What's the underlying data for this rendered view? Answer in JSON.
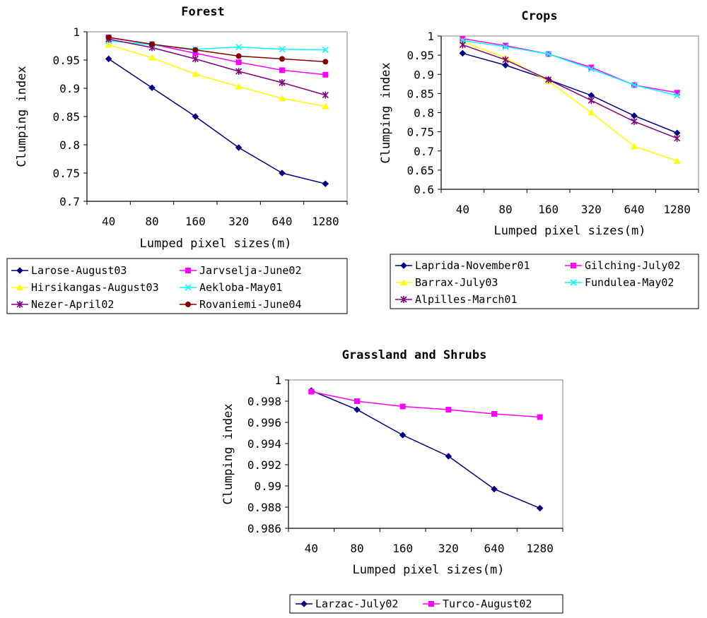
{
  "chart_data": [
    {
      "type": "line",
      "title": "Forest",
      "xlabel": "Lumped pixel sizes(m)",
      "ylabel": "Clumping index",
      "categories": [
        "40",
        "80",
        "160",
        "320",
        "640",
        "1280"
      ],
      "ylim": [
        0.7,
        1
      ],
      "yticks": [
        "0.7",
        "0.75",
        "0.8",
        "0.85",
        "0.9",
        "0.95",
        "1"
      ],
      "grid": false,
      "legend_position": "bottom",
      "series": [
        {
          "name": "Larose-August03",
          "color": "#000080",
          "marker": "diamond",
          "values": [
            0.952,
            0.901,
            0.85,
            0.795,
            0.75,
            0.731
          ]
        },
        {
          "name": "Jarvselja-June02",
          "color": "#ff00ff",
          "marker": "square",
          "values": [
            0.99,
            0.978,
            0.962,
            0.946,
            0.932,
            0.924
          ]
        },
        {
          "name": "Hirsikangas-August03",
          "color": "#ffff00",
          "marker": "triangle",
          "values": [
            0.977,
            0.954,
            0.925,
            0.903,
            0.882,
            0.868
          ]
        },
        {
          "name": "Aekloba-May01",
          "color": "#00ffff",
          "marker": "x",
          "values": [
            0.984,
            0.977,
            0.969,
            0.973,
            0.969,
            0.968
          ]
        },
        {
          "name": "Nezer-April02",
          "color": "#800080",
          "marker": "asterisk",
          "values": [
            0.987,
            0.972,
            0.952,
            0.93,
            0.91,
            0.888
          ]
        },
        {
          "name": "Rovaniemi-June04",
          "color": "#800000",
          "marker": "circle",
          "values": [
            0.99,
            0.978,
            0.968,
            0.957,
            0.952,
            0.947
          ]
        }
      ]
    },
    {
      "type": "line",
      "title": "Crops",
      "xlabel": "Lumped pixel sizes(m)",
      "ylabel": "Clumping index",
      "categories": [
        "40",
        "80",
        "160",
        "320",
        "640",
        "1280"
      ],
      "ylim": [
        0.6,
        1
      ],
      "yticks": [
        "0.6",
        "0.65",
        "0.7",
        "0.75",
        "0.8",
        "0.85",
        "0.9",
        "0.95",
        "1"
      ],
      "grid": false,
      "legend_position": "bottom",
      "series": [
        {
          "name": "Laprida-November01",
          "color": "#000080",
          "marker": "diamond",
          "values": [
            0.955,
            0.924,
            0.886,
            0.845,
            0.792,
            0.747
          ]
        },
        {
          "name": "Gilching-July02",
          "color": "#ff00ff",
          "marker": "square",
          "values": [
            0.993,
            0.975,
            0.953,
            0.918,
            0.872,
            0.852
          ]
        },
        {
          "name": "Barrax-July03",
          "color": "#ffff00",
          "marker": "triangle",
          "values": [
            0.985,
            0.943,
            0.882,
            0.8,
            0.712,
            0.674
          ]
        },
        {
          "name": "Fundulea-May02",
          "color": "#00ffff",
          "marker": "x",
          "values": [
            0.988,
            0.972,
            0.953,
            0.914,
            0.872,
            0.845
          ]
        },
        {
          "name": "Alpilles-March01",
          "color": "#800080",
          "marker": "asterisk",
          "values": [
            0.977,
            0.938,
            0.886,
            0.832,
            0.777,
            0.733
          ]
        }
      ]
    },
    {
      "type": "line",
      "title": "Grassland and Shrubs",
      "xlabel": "Lumped pixel sizes(m)",
      "ylabel": "Clumping index",
      "categories": [
        "40",
        "80",
        "160",
        "320",
        "640",
        "1280"
      ],
      "ylim": [
        0.986,
        1
      ],
      "yticks": [
        "0.986",
        "0.988",
        "0.99",
        "0.992",
        "0.994",
        "0.996",
        "0.998",
        "1"
      ],
      "grid": false,
      "legend_position": "bottom",
      "series": [
        {
          "name": "Larzac-July02",
          "color": "#000080",
          "marker": "diamond",
          "values": [
            0.999,
            0.9972,
            0.9948,
            0.9928,
            0.9897,
            0.9879
          ]
        },
        {
          "name": "Turco-August02",
          "color": "#ff00ff",
          "marker": "square",
          "values": [
            0.9989,
            0.998,
            0.9975,
            0.9972,
            0.9968,
            0.9965
          ]
        }
      ]
    }
  ]
}
